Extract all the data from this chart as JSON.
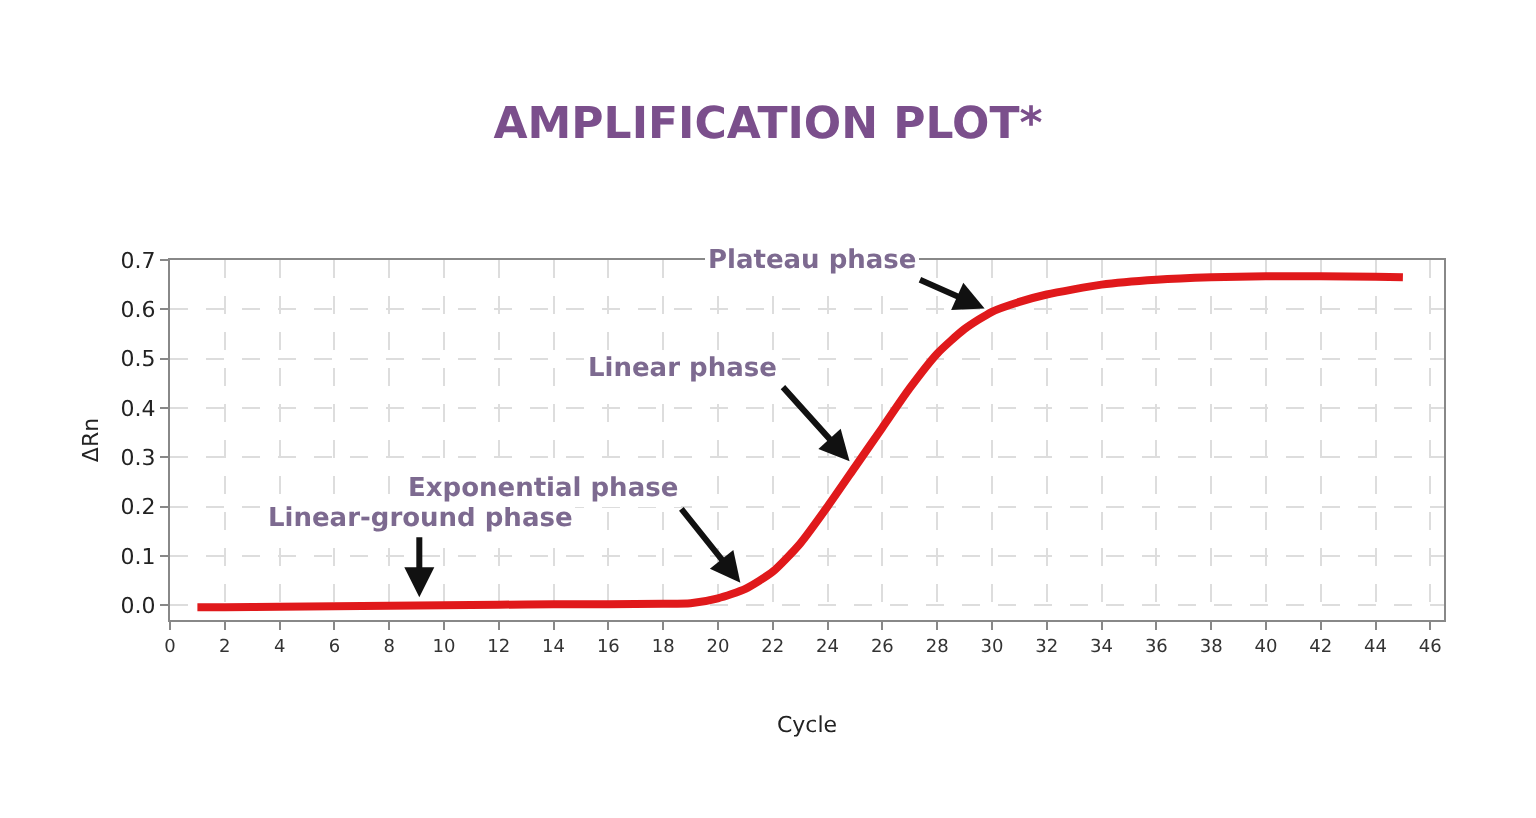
{
  "chart_data": {
    "type": "line",
    "title": "AMPLIFICATION PLOT*",
    "xlabel": "Cycle",
    "ylabel": "ΔRn",
    "x": [
      1,
      2,
      4,
      6,
      8,
      10,
      12,
      14,
      16,
      18,
      19,
      20,
      21,
      22,
      23,
      24,
      25,
      26,
      27,
      28,
      29,
      30,
      31,
      32,
      34,
      36,
      38,
      40,
      42,
      44,
      45
    ],
    "series": [
      {
        "color": "#e0191b",
        "values": [
          -0.004,
          -0.004,
          -0.003,
          -0.002,
          -0.001,
          0,
          0.001,
          0.002,
          0.002,
          0.003,
          0.004,
          0.014,
          0.033,
          0.068,
          0.125,
          0.2,
          0.28,
          0.36,
          0.44,
          0.51,
          0.56,
          0.595,
          0.615,
          0.63,
          0.65,
          0.66,
          0.665,
          0.667,
          0.667,
          0.666,
          0.665
        ]
      }
    ],
    "xlim": [
      0,
      46.5
    ],
    "ylim": [
      -0.03,
      0.7
    ],
    "xticks": [
      0,
      2,
      4,
      6,
      8,
      10,
      12,
      14,
      16,
      18,
      20,
      22,
      24,
      26,
      28,
      30,
      32,
      34,
      36,
      38,
      40,
      42,
      44,
      46
    ],
    "yticks": [
      {
        "value": 0,
        "label": "0.0"
      },
      0.1,
      0.2,
      0.3,
      0.4,
      0.5,
      0.6,
      0.7
    ],
    "grid": true,
    "marker": "none",
    "line_style": "solid",
    "annotations": [
      {
        "text": "Linear-ground phase",
        "x": 9.1,
        "y": 0.0
      },
      {
        "text": "Exponential phase",
        "x": 21,
        "y": 0.033
      },
      {
        "text": "Linear phase",
        "x": 25,
        "y": 0.28
      },
      {
        "text": "Plateau phase",
        "x": 30,
        "y": 0.595
      }
    ]
  }
}
